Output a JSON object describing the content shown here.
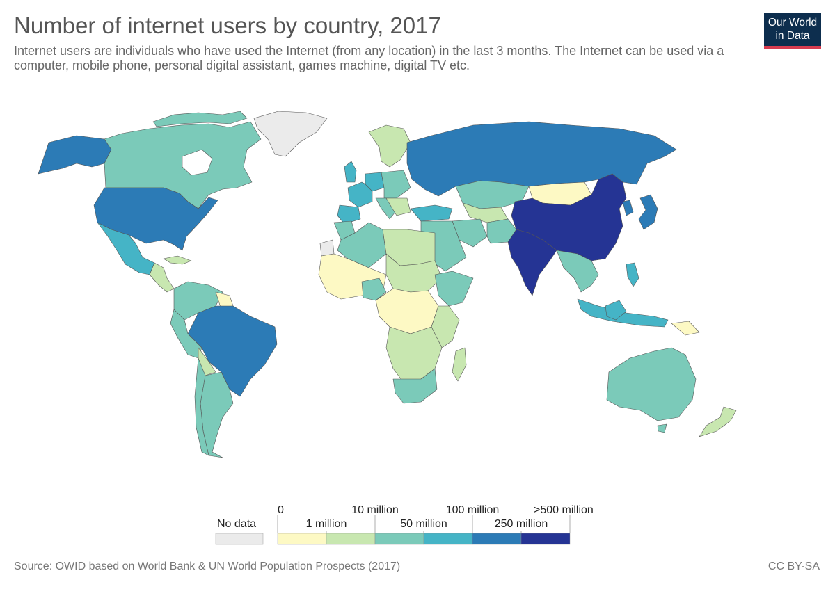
{
  "header": {
    "title": "Number of internet users by country, 2017",
    "subtitle": "Internet users are individuals who have used the Internet (from any location) in the last 3 months. The Internet can be used via a computer, mobile phone, personal digital assistant, games machine, digital TV etc.",
    "logo_line1": "Our World",
    "logo_line2": "in Data"
  },
  "legend": {
    "no_data_label": "No data",
    "bins": [
      {
        "from": "0",
        "to": "1 million",
        "color": "#fdf9c4"
      },
      {
        "from": "1 million",
        "to": "10 million",
        "color": "#c8e7b0"
      },
      {
        "from": "10 million",
        "to": "50 million",
        "color": "#7bcab9"
      },
      {
        "from": "50 million",
        "to": "100 million",
        "color": "#45b4c6"
      },
      {
        "from": "100 million",
        "to": "250 million",
        "color": "#2c7bb6"
      },
      {
        "from": "250 million",
        "to": ">500 million",
        "color": "#253494"
      }
    ],
    "tick_labels": [
      "0",
      "1 million",
      "10 million",
      "50 million",
      "100 million",
      "250 million",
      ">500 million"
    ],
    "no_data_color": "#ebebeb"
  },
  "map_data": {
    "type": "choropleth",
    "year": "2017",
    "regions": [
      {
        "name": "China",
        "bin": 5
      },
      {
        "name": "India",
        "bin": 5
      },
      {
        "name": "United States",
        "bin": 4
      },
      {
        "name": "Brazil",
        "bin": 4
      },
      {
        "name": "Russia",
        "bin": 4
      },
      {
        "name": "Japan",
        "bin": 4
      },
      {
        "name": "Mexico",
        "bin": 3
      },
      {
        "name": "Indonesia",
        "bin": 3
      },
      {
        "name": "Germany",
        "bin": 3
      },
      {
        "name": "Canada",
        "bin": 2
      },
      {
        "name": "Australia",
        "bin": 2
      },
      {
        "name": "Argentina",
        "bin": 2
      },
      {
        "name": "Kazakhstan",
        "bin": 2
      },
      {
        "name": "Algeria",
        "bin": 2
      },
      {
        "name": "Egypt",
        "bin": 2
      },
      {
        "name": "South Africa",
        "bin": 2
      },
      {
        "name": "Mongolia",
        "bin": 0
      },
      {
        "name": "Greenland",
        "bin": -1
      },
      {
        "name": "Western Sahara",
        "bin": -1
      }
    ]
  },
  "footer": {
    "source": "Source: OWID based on World Bank & UN World Population Prospects (2017)",
    "license": "CC BY-SA"
  }
}
